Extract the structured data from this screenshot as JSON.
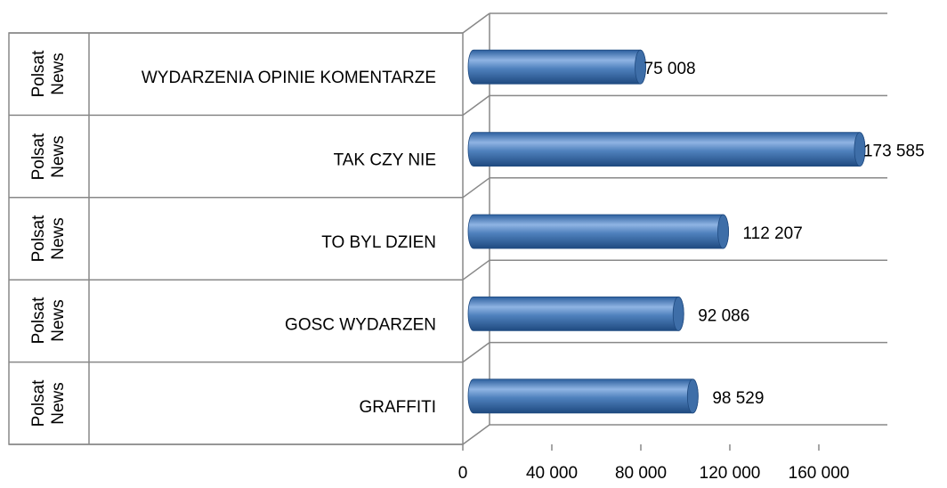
{
  "chart_data": {
    "type": "bar",
    "orientation": "horizontal",
    "groups": [
      "Polsat News",
      "Polsat News",
      "Polsat News",
      "Polsat News",
      "Polsat News"
    ],
    "categories": [
      "WYDARZENIA OPINIE KOMENTARZE",
      "TAK CZY NIE",
      "TO BYL DZIEN",
      "GOSC WYDARZEN",
      "GRAFFITI"
    ],
    "values": [
      75008,
      173585,
      112207,
      92086,
      98529
    ],
    "value_labels": [
      "75 008",
      "173 585",
      "112 207",
      "92 086",
      "98 529"
    ],
    "color": "#4f81bd",
    "xlim": [
      0,
      180000
    ],
    "xticks": [
      0,
      {
        "value": 40000,
        "label": "40 000"
      },
      {
        "value": 80000,
        "label": "80 000"
      },
      {
        "value": 120000,
        "label": "120 000"
      },
      {
        "value": 160000,
        "label": "160 000"
      }
    ]
  }
}
